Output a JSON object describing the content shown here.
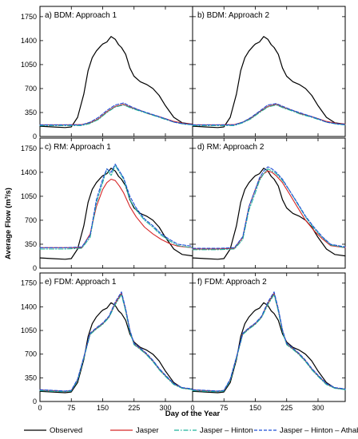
{
  "chart_data": {
    "type": "line",
    "xlabel": "Day of the Year",
    "ylabel": "Average Flow (m³/s)",
    "xlim": [
      0,
      365
    ],
    "ylim": [
      0,
      1900
    ],
    "xticks": [
      0,
      75,
      150,
      225,
      300
    ],
    "yticks": [
      0,
      350,
      700,
      1050,
      1400,
      1750
    ],
    "legend_position": "bottom",
    "legend": [
      {
        "name": "Observed",
        "color": "#000000",
        "dash": "solid"
      },
      {
        "name": "Jasper",
        "color": "#d62728",
        "dash": "solid"
      },
      {
        "name": "Jasper – Hinton",
        "color": "#1fb39c",
        "dash": "dashdot"
      },
      {
        "name": "Jasper – Hinton – Athabasca",
        "color": "#1f4fd6",
        "dash": "dashed"
      }
    ],
    "observed": {
      "x": [
        0,
        30,
        60,
        75,
        90,
        105,
        115,
        125,
        135,
        145,
        150,
        160,
        170,
        180,
        188,
        195,
        205,
        215,
        225,
        240,
        255,
        270,
        285,
        300,
        320,
        340,
        365
      ],
      "y": [
        150,
        140,
        130,
        140,
        280,
        620,
        960,
        1150,
        1250,
        1320,
        1350,
        1380,
        1460,
        1420,
        1340,
        1300,
        1200,
        1000,
        880,
        800,
        760,
        700,
        600,
        450,
        280,
        200,
        180
      ]
    },
    "panels": [
      {
        "id": "a",
        "title": "a) BDM: Approach 1",
        "series": [
          {
            "name": "Jasper",
            "x": [
              0,
              60,
              100,
              120,
              140,
              160,
              180,
              200,
              220,
              240,
              260,
              280,
              300,
              320,
              345,
              365
            ],
            "y": [
              170,
              170,
              175,
              200,
              260,
              360,
              440,
              470,
              420,
              380,
              330,
              300,
              260,
              220,
              190,
              180
            ]
          },
          {
            "name": "Jasper – Hinton",
            "x": [
              0,
              60,
              100,
              120,
              140,
              160,
              180,
              200,
              220,
              240,
              260,
              280,
              300,
              320,
              345,
              365
            ],
            "y": [
              160,
              160,
              160,
              190,
              250,
              350,
              430,
              460,
              410,
              370,
              330,
              290,
              250,
              210,
              180,
              170
            ]
          },
          {
            "name": "Jasper – Hinton – Athabasca",
            "x": [
              0,
              60,
              100,
              120,
              140,
              160,
              180,
              200,
              220,
              240,
              260,
              280,
              300,
              320,
              345,
              365
            ],
            "y": [
              170,
              170,
              170,
              210,
              280,
              380,
              460,
              490,
              430,
              380,
              340,
              300,
              260,
              210,
              185,
              175
            ]
          }
        ]
      },
      {
        "id": "b",
        "title": "b) BDM: Approach 2",
        "series": [
          {
            "name": "Jasper",
            "x": [
              0,
              60,
              100,
              120,
              140,
              160,
              180,
              200,
              220,
              240,
              260,
              280,
              300,
              320,
              345,
              365
            ],
            "y": [
              170,
              170,
              175,
              210,
              270,
              360,
              440,
              470,
              420,
              380,
              330,
              300,
              260,
              220,
              190,
              180
            ]
          },
          {
            "name": "Jasper – Hinton",
            "x": [
              0,
              60,
              100,
              120,
              140,
              160,
              180,
              200,
              220,
              240,
              260,
              280,
              300,
              320,
              345,
              365
            ],
            "y": [
              160,
              160,
              160,
              200,
              260,
              350,
              430,
              460,
              410,
              370,
              320,
              290,
              250,
              210,
              180,
              170
            ]
          },
          {
            "name": "Jasper – Hinton – Athabasca",
            "x": [
              0,
              60,
              100,
              120,
              140,
              160,
              180,
              200,
              220,
              240,
              260,
              280,
              300,
              320,
              345,
              365
            ],
            "y": [
              170,
              170,
              170,
              210,
              280,
              370,
              460,
              480,
              430,
              380,
              340,
              300,
              260,
              210,
              185,
              175
            ]
          }
        ]
      },
      {
        "id": "c",
        "title": "c) RM: Approach 1",
        "series": [
          {
            "name": "Jasper",
            "x": [
              0,
              60,
              100,
              120,
              135,
              150,
              160,
              170,
              180,
              190,
              200,
              215,
              230,
              250,
              270,
              290,
              310,
              330,
              365
            ],
            "y": [
              300,
              300,
              300,
              500,
              900,
              1150,
              1250,
              1300,
              1280,
              1200,
              1100,
              900,
              750,
              600,
              500,
              420,
              360,
              320,
              300
            ]
          },
          {
            "name": "Jasper – Hinton",
            "x": [
              0,
              60,
              100,
              120,
              135,
              150,
              160,
              170,
              180,
              190,
              200,
              215,
              230,
              250,
              270,
              290,
              310,
              330,
              365
            ],
            "y": [
              280,
              280,
              290,
              450,
              950,
              1250,
              1450,
              1350,
              1500,
              1400,
              1300,
              1000,
              850,
              700,
              600,
              480,
              400,
              330,
              300
            ]
          },
          {
            "name": "Jasper – Hinton – Athabasca",
            "x": [
              0,
              60,
              100,
              120,
              135,
              150,
              160,
              170,
              180,
              190,
              200,
              215,
              230,
              250,
              270,
              290,
              310,
              330,
              365
            ],
            "y": [
              300,
              300,
              310,
              480,
              1000,
              1300,
              1450,
              1400,
              1520,
              1420,
              1320,
              1050,
              880,
              720,
              620,
              500,
              420,
              350,
              320
            ]
          }
        ]
      },
      {
        "id": "d",
        "title": "d) RM: Approach 2",
        "series": [
          {
            "name": "Jasper",
            "x": [
              0,
              60,
              100,
              120,
              135,
              150,
              160,
              170,
              180,
              190,
              200,
              215,
              230,
              250,
              270,
              290,
              310,
              330,
              365
            ],
            "y": [
              280,
              280,
              290,
              450,
              900,
              1150,
              1300,
              1380,
              1420,
              1400,
              1350,
              1250,
              1100,
              900,
              700,
              550,
              430,
              330,
              300
            ]
          },
          {
            "name": "Jasper – Hinton",
            "x": [
              0,
              60,
              100,
              120,
              135,
              150,
              160,
              170,
              180,
              190,
              200,
              215,
              230,
              250,
              270,
              290,
              310,
              330,
              365
            ],
            "y": [
              270,
              270,
              280,
              420,
              850,
              1100,
              1280,
              1380,
              1450,
              1420,
              1380,
              1280,
              1150,
              950,
              750,
              580,
              450,
              340,
              300
            ]
          },
          {
            "name": "Jasper – Hinton – Athabasca",
            "x": [
              0,
              60,
              100,
              120,
              135,
              150,
              160,
              170,
              180,
              190,
              200,
              215,
              230,
              250,
              270,
              290,
              310,
              330,
              365
            ],
            "y": [
              290,
              290,
              300,
              460,
              900,
              1150,
              1320,
              1420,
              1480,
              1450,
              1400,
              1300,
              1150,
              960,
              760,
              600,
              460,
              350,
              310
            ]
          }
        ]
      },
      {
        "id": "e",
        "title": "e) FDM: Approach 1",
        "series": [
          {
            "name": "Jasper",
            "x": [
              0,
              30,
              60,
              75,
              90,
              105,
              120,
              135,
              150,
              165,
              180,
              195,
              205,
              215,
              225,
              240,
              255,
              270,
              285,
              300,
              320,
              340,
              365
            ],
            "y": [
              170,
              160,
              150,
              160,
              320,
              650,
              1000,
              1080,
              1150,
              1250,
              1450,
              1600,
              1350,
              1050,
              850,
              780,
              700,
              600,
              480,
              380,
              260,
              200,
              180
            ]
          },
          {
            "name": "Jasper – Hinton",
            "x": [
              0,
              30,
              60,
              75,
              90,
              105,
              120,
              135,
              150,
              165,
              180,
              195,
              205,
              215,
              225,
              240,
              255,
              270,
              285,
              300,
              320,
              340,
              365
            ],
            "y": [
              160,
              150,
              145,
              155,
              310,
              640,
              990,
              1070,
              1140,
              1240,
              1430,
              1580,
              1330,
              1030,
              840,
              770,
              690,
              590,
              470,
              370,
              250,
              195,
              175
            ]
          },
          {
            "name": "Jasper – Hinton – Athabasca",
            "x": [
              0,
              30,
              60,
              75,
              90,
              105,
              120,
              135,
              150,
              165,
              180,
              195,
              205,
              215,
              225,
              240,
              255,
              270,
              285,
              300,
              320,
              340,
              365
            ],
            "y": [
              175,
              165,
              155,
              165,
              330,
              660,
              1010,
              1090,
              1160,
              1260,
              1470,
              1620,
              1370,
              1060,
              860,
              790,
              710,
              610,
              490,
              390,
              265,
              205,
              185
            ]
          }
        ]
      },
      {
        "id": "f",
        "title": "f) FDM: Approach 2",
        "series": [
          {
            "name": "Jasper",
            "x": [
              0,
              30,
              60,
              75,
              90,
              105,
              120,
              135,
              150,
              165,
              180,
              195,
              205,
              215,
              225,
              240,
              255,
              270,
              285,
              300,
              320,
              340,
              365
            ],
            "y": [
              170,
              160,
              150,
              160,
              320,
              650,
              1000,
              1080,
              1150,
              1250,
              1450,
              1600,
              1350,
              1050,
              850,
              780,
              700,
              600,
              480,
              380,
              260,
              200,
              180
            ]
          },
          {
            "name": "Jasper – Hinton",
            "x": [
              0,
              30,
              60,
              75,
              90,
              105,
              120,
              135,
              150,
              165,
              180,
              195,
              205,
              215,
              225,
              240,
              255,
              270,
              285,
              300,
              320,
              340,
              365
            ],
            "y": [
              160,
              150,
              145,
              155,
              310,
              640,
              990,
              1070,
              1140,
              1240,
              1430,
              1580,
              1330,
              1030,
              840,
              770,
              690,
              590,
              470,
              370,
              250,
              195,
              175
            ]
          },
          {
            "name": "Jasper – Hinton – Athabasca",
            "x": [
              0,
              30,
              60,
              75,
              90,
              105,
              120,
              135,
              150,
              165,
              180,
              195,
              205,
              215,
              225,
              240,
              255,
              270,
              285,
              300,
              320,
              340,
              365
            ],
            "y": [
              175,
              165,
              155,
              165,
              330,
              660,
              1010,
              1090,
              1160,
              1260,
              1470,
              1620,
              1370,
              1060,
              860,
              790,
              710,
              610,
              490,
              390,
              265,
              205,
              185
            ]
          }
        ]
      }
    ]
  }
}
